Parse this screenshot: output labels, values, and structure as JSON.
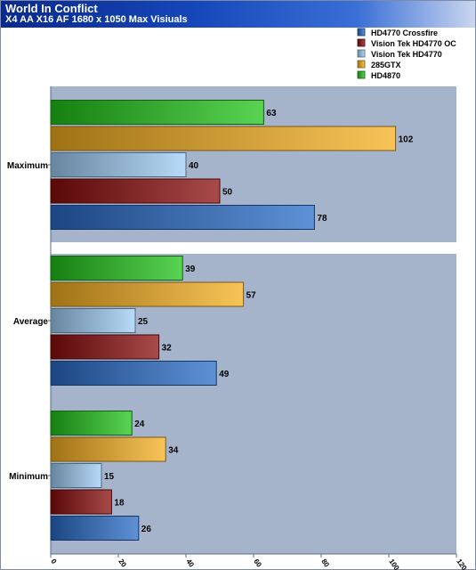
{
  "header": {
    "title": "World In Conflict",
    "subtitle": "X4 AA X16 AF 1680 x 1050 Max Visiuals"
  },
  "colors": {
    "HD4770 Crossfire": "#2a6cc8",
    "Vision Tek HD4770 OC": "#8b0d0d",
    "Vision Tek HD4770": "#9fcdf5",
    "285GTX": "#f5b020",
    "HD4870": "#22c41a"
  },
  "chart_data": {
    "type": "bar",
    "orientation": "horizontal",
    "categories": [
      "Maximum",
      "Average",
      "Minimum"
    ],
    "series": [
      {
        "name": "HD4870",
        "values": [
          63,
          39,
          24
        ]
      },
      {
        "name": "285GTX",
        "values": [
          102,
          57,
          34
        ]
      },
      {
        "name": "Vision Tek HD4770",
        "values": [
          40,
          25,
          15
        ]
      },
      {
        "name": "Vision Tek HD4770 OC",
        "values": [
          50,
          32,
          18
        ]
      },
      {
        "name": "HD4770 Crossfire",
        "values": [
          78,
          49,
          26
        ]
      }
    ],
    "legend_order": [
      "HD4770 Crossfire",
      "Vision Tek HD4770 OC",
      "Vision Tek HD4770",
      "285GTX",
      "HD4870"
    ],
    "xlim": [
      0,
      120
    ],
    "xticks": [
      0,
      20,
      40,
      60,
      80,
      100,
      120
    ],
    "legend_position": "top-right",
    "grid": false
  }
}
